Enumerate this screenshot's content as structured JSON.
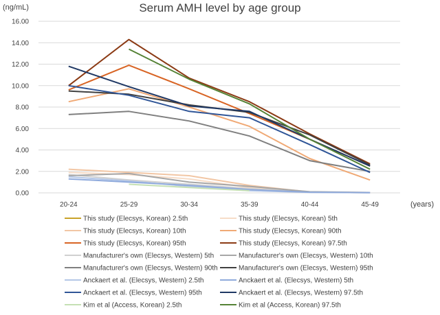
{
  "chart_data": {
    "type": "line",
    "title": "Serum AMH level by age group",
    "ylabel": "(ng/mL)",
    "xlabel": "(years)",
    "ylim": [
      0,
      16
    ],
    "yticks": [
      "0.00",
      "2.00",
      "4.00",
      "6.00",
      "8.00",
      "10.00",
      "12.00",
      "14.00",
      "16.00"
    ],
    "categories": [
      "20-24",
      "25-29",
      "30-34",
      "35-39",
      "40-44",
      "45-49"
    ],
    "grid": true,
    "legend_position": "bottom",
    "series": [
      {
        "name": "This study (Elecsys, Korean) 2.5th",
        "color": "#c9a227",
        "values": [
          null,
          null,
          null,
          null,
          null,
          null
        ]
      },
      {
        "name": "This study (Elecsys, Korean) 5th",
        "color": "#f7dcc7",
        "values": [
          1.9,
          1.7,
          1.3,
          0.5,
          0.05,
          0.02
        ]
      },
      {
        "name": "This study (Elecsys, Korean) 10th",
        "color": "#f2c6a4",
        "values": [
          2.2,
          1.9,
          1.6,
          0.7,
          0.08,
          0.03
        ]
      },
      {
        "name": "This study (Elecsys, Korean) 90th",
        "color": "#f0a975",
        "values": [
          8.5,
          9.7,
          8.0,
          6.2,
          3.2,
          1.2
        ]
      },
      {
        "name": "This study (Elecsys, Korean) 95th",
        "color": "#d86424",
        "values": [
          9.6,
          11.9,
          9.7,
          7.4,
          5.0,
          2.5
        ]
      },
      {
        "name": "This study (Elecsys, Korean) 97.5th",
        "color": "#8b3a14",
        "values": [
          10.0,
          14.3,
          10.7,
          8.5,
          5.5,
          2.7
        ]
      },
      {
        "name": "Manufacturer's own (Elecsys, Western) 5th",
        "color": "#d0d0d0",
        "values": [
          1.7,
          1.2,
          0.8,
          0.4,
          0.05,
          0.02
        ]
      },
      {
        "name": "Manufacturer's own (Elecsys, Western) 10th",
        "color": "#a6a6a6",
        "values": [
          1.6,
          1.8,
          1.0,
          0.6,
          0.1,
          0.03
        ]
      },
      {
        "name": "Manufacturer's own (Elecsys, Western) 90th",
        "color": "#7f7f7f",
        "values": [
          7.3,
          7.6,
          6.7,
          5.3,
          3.0,
          2.0
        ]
      },
      {
        "name": "Manufacturer's own (Elecsys, Western) 95th",
        "color": "#404040",
        "values": [
          9.5,
          9.2,
          8.2,
          7.5,
          5.4,
          2.6
        ]
      },
      {
        "name": "Anckaert et al. (Elecsys, Western) 2.5th",
        "color": "#b4c7e7",
        "values": [
          1.5,
          1.1,
          0.6,
          0.2,
          0.05,
          0.02
        ]
      },
      {
        "name": "Anckaert et al. (Elecsys, Western) 5th",
        "color": "#8faadc",
        "values": [
          1.3,
          1.0,
          0.7,
          0.3,
          0.06,
          0.02
        ]
      },
      {
        "name": "Anckaert et al. (Elecsys, Western) 95th",
        "color": "#2f5597",
        "values": [
          10.0,
          9.1,
          7.6,
          7.0,
          4.5,
          1.9
        ]
      },
      {
        "name": "Anckaert et al. (Elecsys, Western) 97.5th",
        "color": "#1f3864",
        "values": [
          11.8,
          9.9,
          8.1,
          7.6,
          5.0,
          2.5
        ]
      },
      {
        "name": "Kim et al (Access, Korean) 2.5th",
        "color": "#c5e0b4",
        "values": [
          null,
          0.8,
          0.5,
          0.2,
          null,
          null
        ]
      },
      {
        "name": "Kim et al (Access, Korean) 97.5th",
        "color": "#548235",
        "values": [
          null,
          13.4,
          10.6,
          8.3,
          5.0,
          2.2
        ]
      }
    ]
  }
}
